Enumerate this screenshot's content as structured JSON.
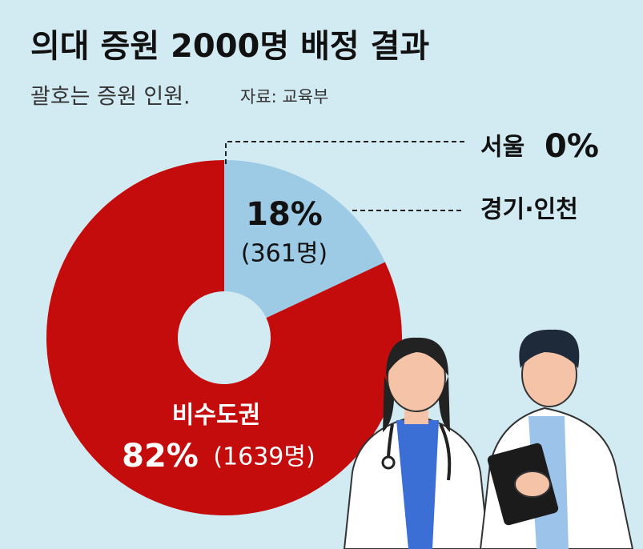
{
  "chart_data": {
    "type": "donut",
    "title": "의대 증원 2000명 배정 결과",
    "subtitle": "괄호는 증원 인원.",
    "source": "자료: 교육부",
    "categories": [
      "서울",
      "경기·인천",
      "비수도권"
    ],
    "values": [
      0,
      18,
      82
    ],
    "value_labels": [
      "0%",
      "18%",
      "82%"
    ],
    "counts": [
      null,
      361,
      1639
    ],
    "count_labels": [
      null,
      "(361명)",
      "(1639명)"
    ],
    "colors": [
      "#9dcbe6",
      "#9dcbe6",
      "#c40c0c"
    ]
  }
}
